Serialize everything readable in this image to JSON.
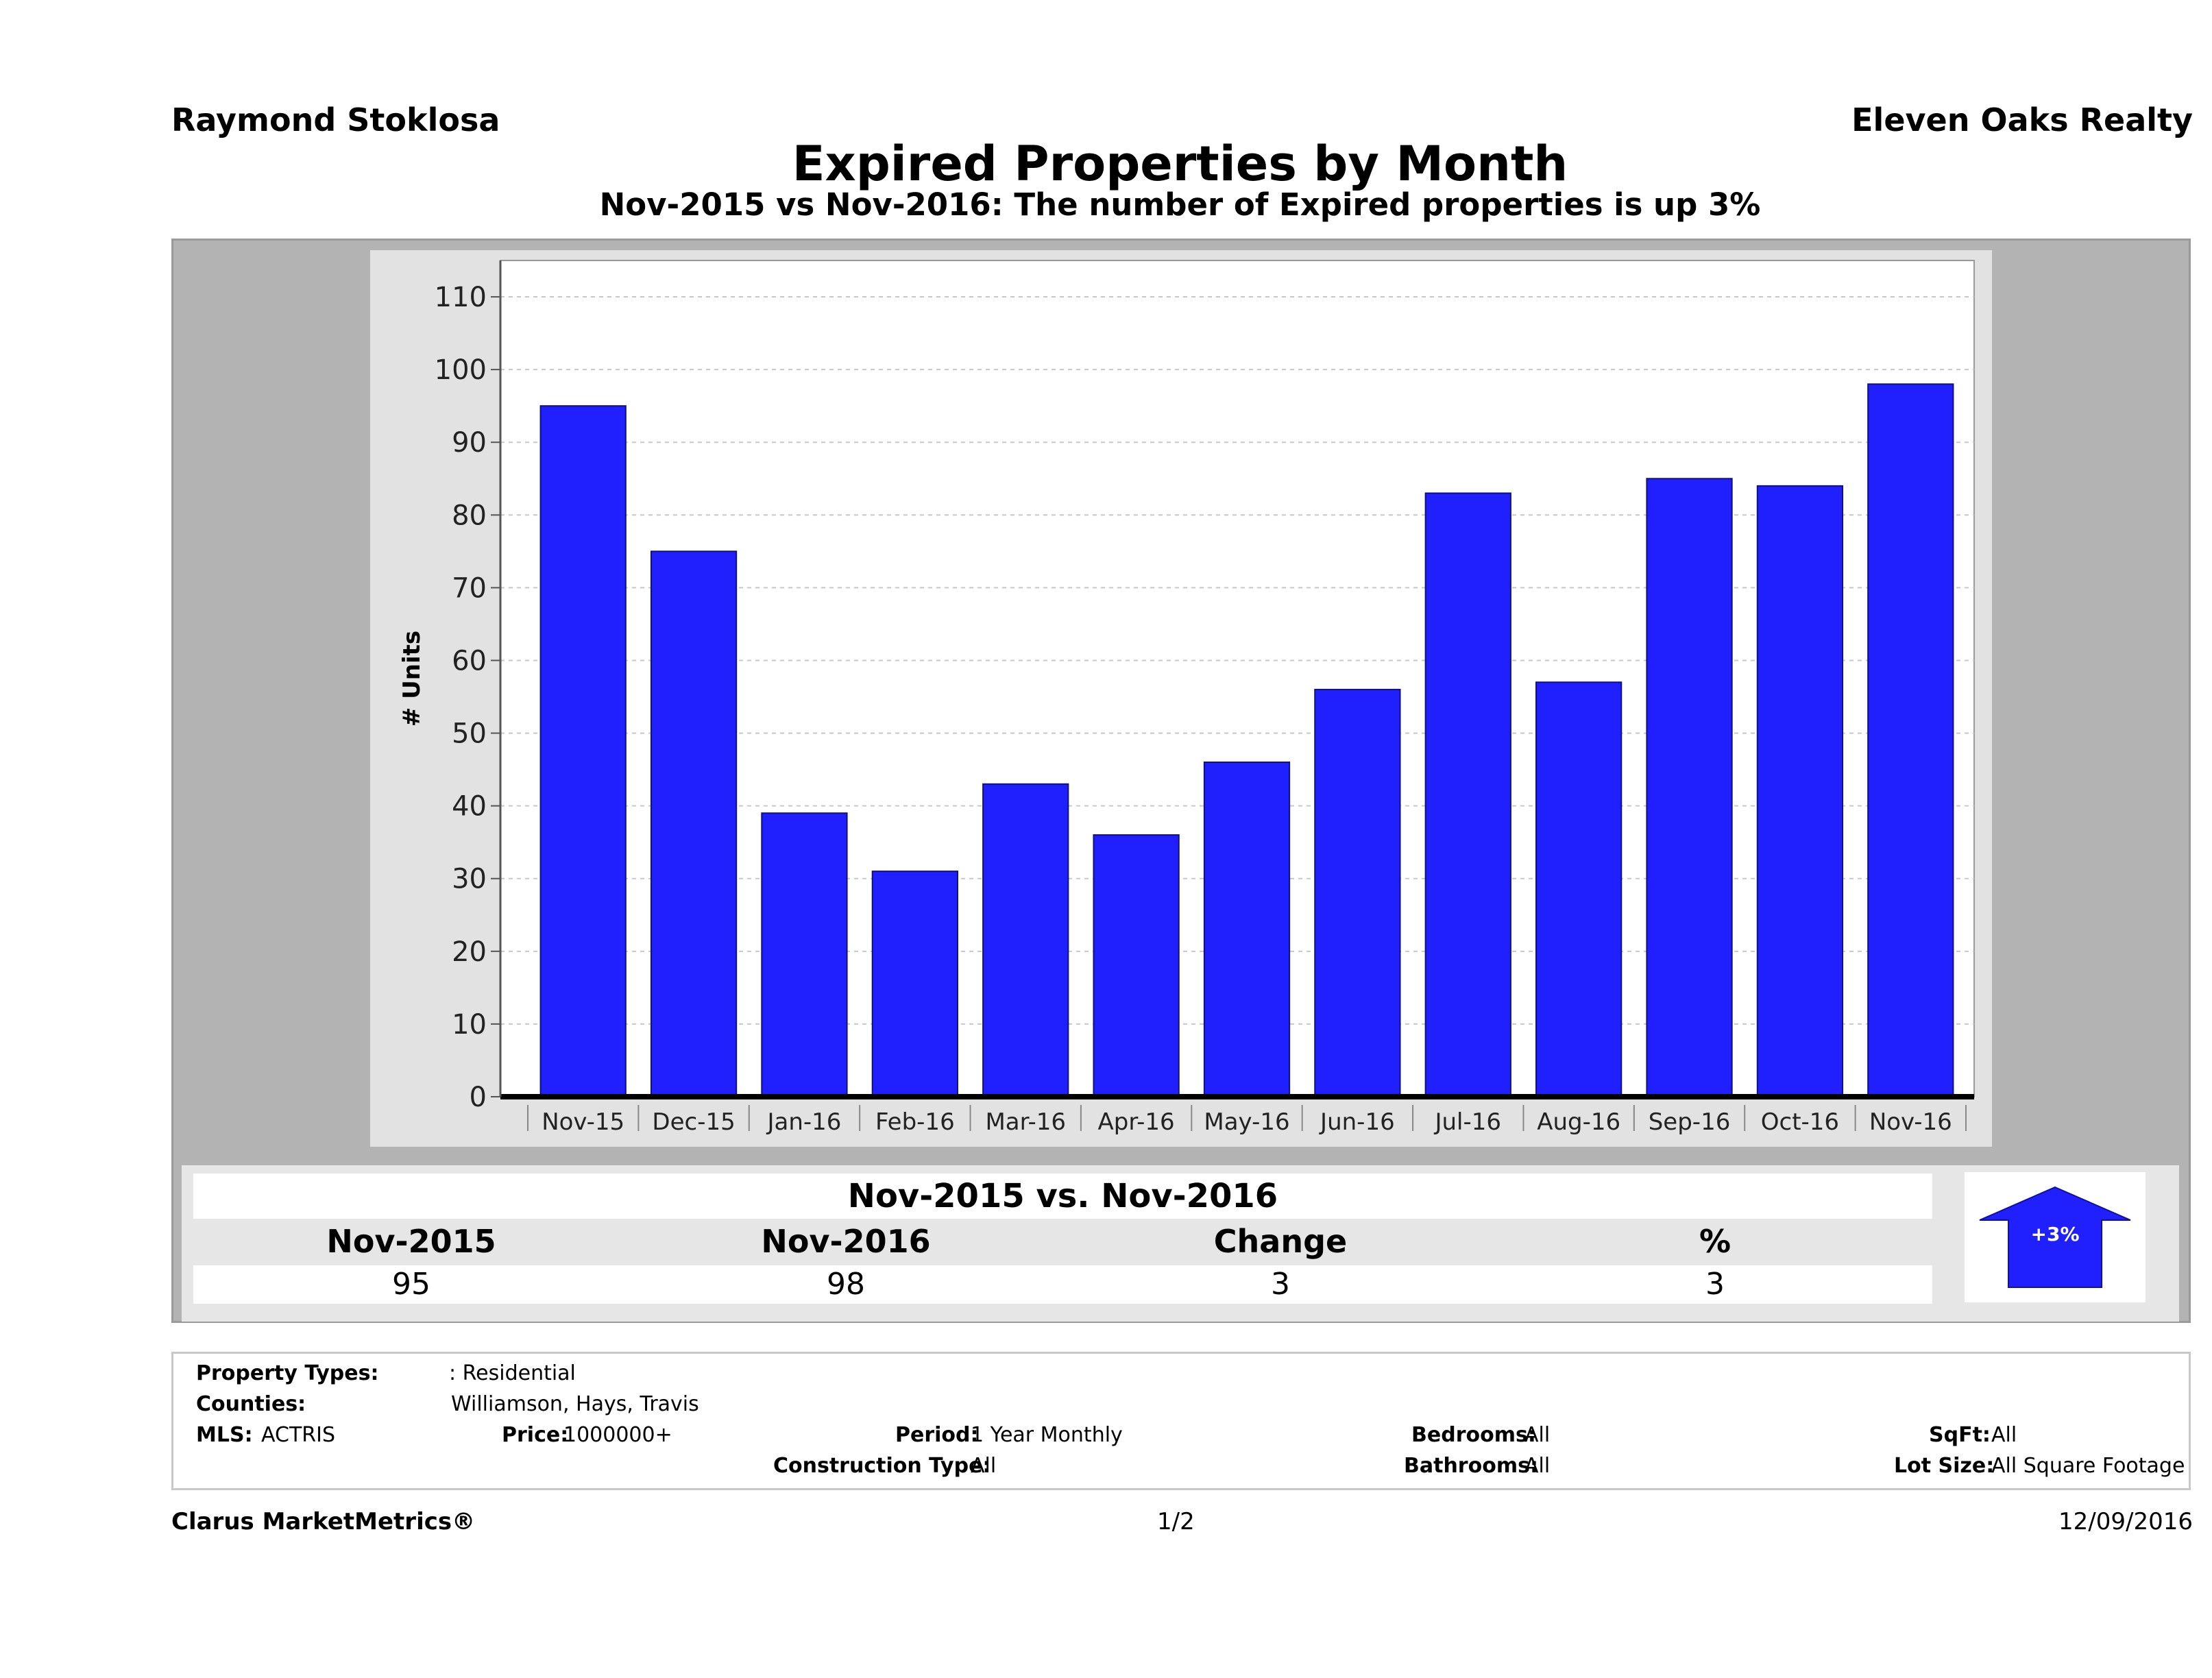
{
  "header": {
    "agent": "Raymond Stoklosa",
    "company": "Eleven Oaks Realty",
    "title": "Expired Properties by Month",
    "subtitle": "Nov-2015 vs Nov-2016: The number of Expired  properties is up 3%"
  },
  "chart_data": {
    "type": "bar",
    "categories": [
      "Nov-15",
      "Dec-15",
      "Jan-16",
      "Feb-16",
      "Mar-16",
      "Apr-16",
      "May-16",
      "Jun-16",
      "Jul-16",
      "Aug-16",
      "Sep-16",
      "Oct-16",
      "Nov-16"
    ],
    "values": [
      95,
      75,
      39,
      31,
      43,
      36,
      46,
      56,
      83,
      57,
      85,
      84,
      98
    ],
    "ylabel": "# Units",
    "ylim": [
      0,
      115
    ],
    "yticks": [
      0,
      10,
      20,
      30,
      40,
      50,
      60,
      70,
      80,
      90,
      100,
      110
    ],
    "bar_color": "#2020ff",
    "grid": true
  },
  "comparison": {
    "title": "Nov-2015 vs. Nov-2016",
    "headers": [
      "Nov-2015",
      "Nov-2016",
      "Change",
      "%"
    ],
    "values": [
      "95",
      "98",
      "3",
      "3"
    ],
    "arrow_label": "+3%",
    "arrow_color": "#2020ff"
  },
  "filters": {
    "property_types_label": "Property Types:",
    "property_types_value": ": Residential",
    "counties_label": "Counties:",
    "counties_value": "Williamson, Hays, Travis",
    "mls_label": "MLS:",
    "mls_value": "ACTRIS",
    "price_label": "Price:",
    "price_value": "1000000+",
    "period_label": "Period:",
    "period_value": "1 Year Monthly",
    "construction_label": "Construction Type:",
    "construction_value": "All",
    "bedrooms_label": "Bedrooms:",
    "bedrooms_value": "All",
    "bathrooms_label": "Bathrooms:",
    "bathrooms_value": "All",
    "sqft_label": "SqFt:",
    "sqft_value": "All",
    "lot_label": "Lot Size:",
    "lot_value": "All Square Footage"
  },
  "footer": {
    "brand": "Clarus MarketMetrics®",
    "page": "1/2",
    "date": "12/09/2016"
  }
}
